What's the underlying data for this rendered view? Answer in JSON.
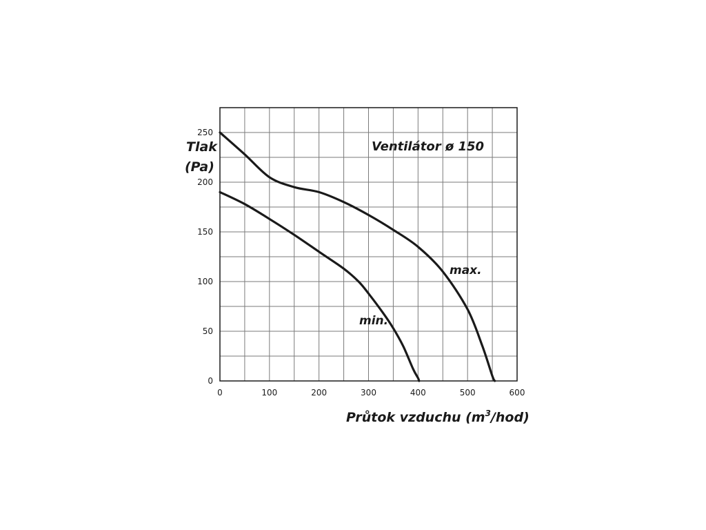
{
  "chart_data": {
    "type": "line",
    "title": "Ventilátor ø 150",
    "xlabel_main": "Průtok vzduchu (m",
    "xlabel_sup": "3",
    "xlabel_end": "/hod)",
    "ylabel_line1": "Tlak",
    "ylabel_line2": "(Pa)",
    "xlim": [
      0,
      600
    ],
    "ylim": [
      0,
      275
    ],
    "x_ticks": [
      0,
      100,
      200,
      300,
      400,
      500,
      600
    ],
    "y_ticks": [
      0,
      50,
      100,
      150,
      200,
      250
    ],
    "grid": true,
    "series": [
      {
        "name": "max.",
        "x": [
          0,
          50,
          100,
          150,
          200,
          250,
          300,
          350,
          400,
          450,
          500,
          530,
          550,
          555
        ],
        "y": [
          250,
          228,
          205,
          195,
          190,
          180,
          167,
          152,
          135,
          110,
          72,
          35,
          5,
          0
        ]
      },
      {
        "name": "min.",
        "x": [
          0,
          50,
          100,
          150,
          200,
          250,
          280,
          300,
          330,
          350,
          370,
          390,
          400,
          402
        ],
        "y": [
          190,
          178,
          163,
          147,
          130,
          113,
          100,
          88,
          68,
          53,
          35,
          12,
          3,
          0
        ]
      }
    ]
  }
}
